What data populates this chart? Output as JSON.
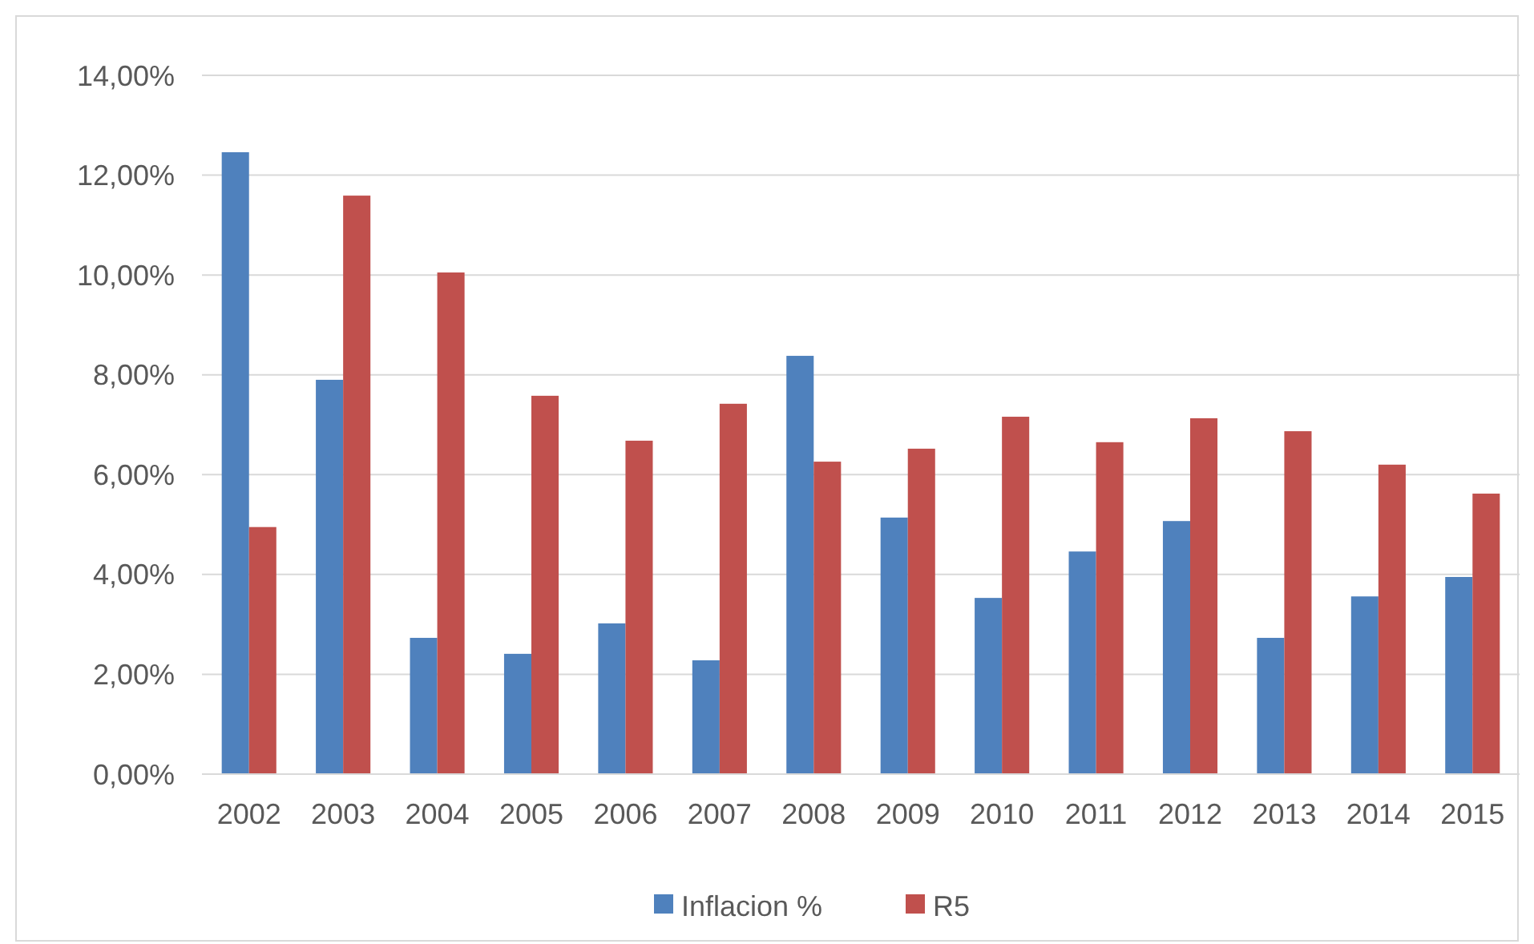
{
  "chart_data": {
    "type": "bar",
    "categories": [
      "2002",
      "2003",
      "2004",
      "2005",
      "2006",
      "2007",
      "2008",
      "2009",
      "2010",
      "2011",
      "2012",
      "2013",
      "2014",
      "2015"
    ],
    "series": [
      {
        "name": "Inflacion %",
        "color": "#4f81bd",
        "values": [
          12.46,
          7.9,
          2.73,
          2.41,
          3.02,
          2.28,
          8.38,
          5.14,
          3.53,
          4.46,
          5.07,
          2.73,
          3.56,
          3.95
        ]
      },
      {
        "name": "R5",
        "color": "#c0504d",
        "values": [
          4.95,
          11.59,
          10.05,
          7.58,
          6.68,
          7.42,
          6.26,
          6.52,
          7.16,
          6.65,
          7.13,
          6.87,
          6.2,
          5.62
        ]
      }
    ],
    "ylim": [
      0,
      14
    ],
    "yticks": [
      {
        "value": 0,
        "label": "0,00%"
      },
      {
        "value": 2,
        "label": "2,00%"
      },
      {
        "value": 4,
        "label": "4,00%"
      },
      {
        "value": 6,
        "label": "6,00%"
      },
      {
        "value": 8,
        "label": "8,00%"
      },
      {
        "value": 10,
        "label": "10,00%"
      },
      {
        "value": 12,
        "label": "12,00%"
      },
      {
        "value": 14,
        "label": "14,00%"
      }
    ],
    "grid": "y",
    "legend": "bottom"
  }
}
